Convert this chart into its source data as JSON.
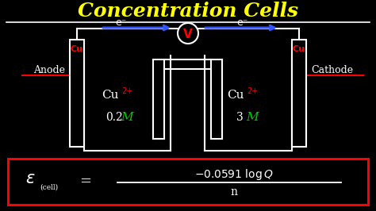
{
  "title": "Concentration Cells",
  "title_color": "#FFFF00",
  "bg_color": "#000000",
  "anode_label": "Anode",
  "cathode_label": "Cathode",
  "anode_cu": "Cu",
  "cathode_cu": "Cu",
  "left_ion": "Cu",
  "left_superscript": "2+",
  "left_conc_num": "0.2",
  "left_conc_M": "M",
  "right_ion": "Cu",
  "right_superscript": "2+",
  "right_conc_num": "3",
  "right_conc_M": "M",
  "voltmeter": "V",
  "electron_label": "e⁻",
  "white": "#FFFFFF",
  "red": "#FF0000",
  "green": "#00CC00",
  "blue": "#3355FF",
  "yellow": "#FFFF00"
}
